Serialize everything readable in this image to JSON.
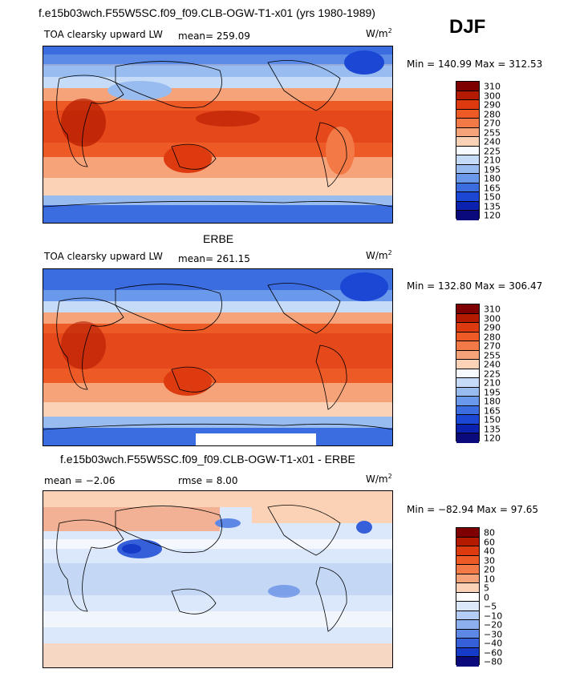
{
  "header": {
    "main_title": "f.e15b03wch.F55W5SC.f09_f09.CLB-OGW-T1-x01 (yrs 1980-1989)",
    "season": "DJF"
  },
  "units": {
    "base": "W/m",
    "exp": "2"
  },
  "panels": [
    {
      "title": "",
      "variable": "TOA clearsky upward LW",
      "stat1": "mean= 259.09",
      "stat2": "",
      "minmax": "Min = 140.99 Max = 312.53",
      "levels": [
        "310",
        "300",
        "290",
        "280",
        "270",
        "255",
        "240",
        "225",
        "210",
        "195",
        "180",
        "165",
        "150",
        "135",
        "120"
      ]
    },
    {
      "title": "ERBE",
      "variable": "TOA clearsky upward LW",
      "stat1": "mean= 261.15",
      "stat2": "",
      "minmax": "Min = 132.80 Max = 306.47",
      "levels": [
        "310",
        "300",
        "290",
        "280",
        "270",
        "255",
        "240",
        "225",
        "210",
        "195",
        "180",
        "165",
        "150",
        "135",
        "120"
      ]
    },
    {
      "title": "f.e15b03wch.F55W5SC.f09_f09.CLB-OGW-T1-x01 - ERBE",
      "variable": "",
      "stat1": "mean = −2.06",
      "stat2": "rmse = 8.00",
      "minmax": "Min = −82.94 Max = 97.65",
      "levels": [
        "80",
        "60",
        "40",
        "30",
        "20",
        "10",
        "5",
        "0",
        "−5",
        "−10",
        "−20",
        "−30",
        "−40",
        "−60",
        "−80"
      ]
    }
  ],
  "colors": {
    "abs_scale": [
      "#7e0000",
      "#b41a00",
      "#de3a10",
      "#ee5a26",
      "#f37a46",
      "#f7a37a",
      "#fbd2b6",
      "#f7fbff",
      "#c6dbf7",
      "#98bcf0",
      "#6a98ea",
      "#3b6ce0",
      "#1c46d4",
      "#0b22b0",
      "#0a0a7c"
    ],
    "diff_scale": [
      "#7e0000",
      "#b41a00",
      "#de3a10",
      "#ee5a26",
      "#f37a46",
      "#f7a37a",
      "#fbd2b6",
      "#ffffff",
      "#dbe8fb",
      "#b4cdf4",
      "#8cb0ee",
      "#5e88e6",
      "#3560da",
      "#163bc8",
      "#0a0a7c"
    ]
  },
  "chart_data": [
    {
      "type": "heatmap",
      "title": "TOA clearsky upward LW",
      "subtitle": "f.e15b03wch.F55W5SC.f09_f09.CLB-OGW-T1-x01 (yrs 1980-1989) — DJF",
      "units": "W/m^2",
      "mean": 259.09,
      "min": 140.99,
      "max": 312.53,
      "contour_levels": [
        120,
        135,
        150,
        165,
        180,
        195,
        210,
        225,
        240,
        255,
        270,
        280,
        290,
        300,
        310
      ]
    },
    {
      "type": "heatmap",
      "title": "ERBE",
      "units": "W/m^2",
      "mean": 261.15,
      "min": 132.8,
      "max": 306.47,
      "contour_levels": [
        120,
        135,
        150,
        165,
        180,
        195,
        210,
        225,
        240,
        255,
        270,
        280,
        290,
        300,
        310
      ]
    },
    {
      "type": "heatmap",
      "title": "f.e15b03wch.F55W5SC.f09_f09.CLB-OGW-T1-x01 - ERBE",
      "units": "W/m^2",
      "mean": -2.06,
      "rmse": 8.0,
      "min": -82.94,
      "max": 97.65,
      "contour_levels": [
        -80,
        -60,
        -40,
        -30,
        -20,
        -10,
        -5,
        0,
        5,
        10,
        20,
        30,
        40,
        60,
        80
      ]
    }
  ]
}
